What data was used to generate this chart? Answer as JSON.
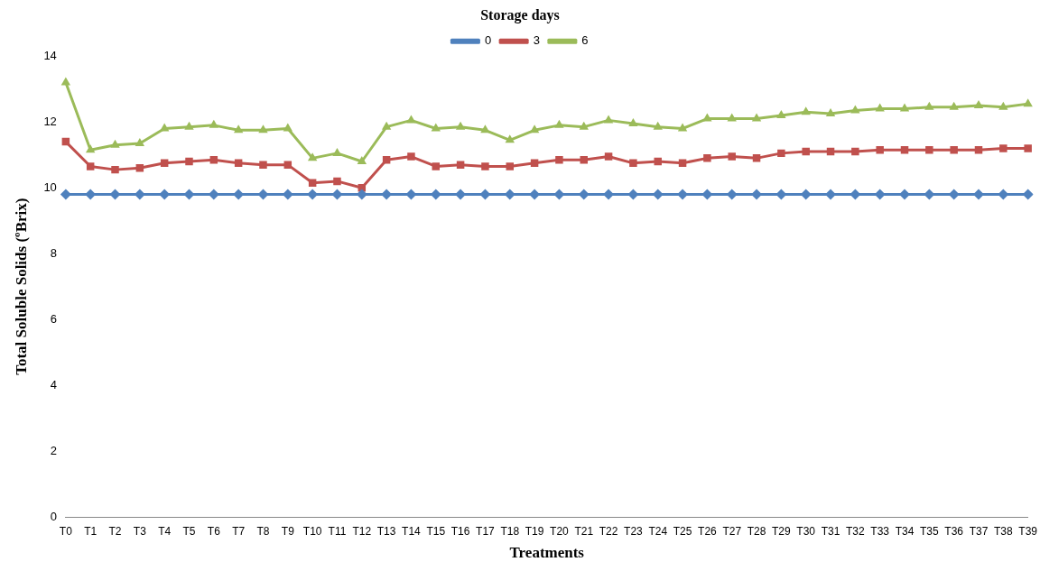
{
  "chart_data": {
    "type": "line",
    "legend_title": "Storage days",
    "xlabel": "Treatments",
    "ylabel": "Total Soluble Solids (ºBrix)",
    "categories": [
      "T0",
      "T1",
      "T2",
      "T3",
      "T4",
      "T5",
      "T6",
      "T7",
      "T8",
      "T9",
      "T10",
      "T11",
      "T12",
      "T13",
      "T14",
      "T15",
      "T16",
      "T17",
      "T18",
      "T19",
      "T20",
      "T21",
      "T22",
      "T23",
      "T24",
      "T25",
      "T26",
      "T27",
      "T28",
      "T29",
      "T30",
      "T31",
      "T32",
      "T33",
      "T34",
      "T35",
      "T36",
      "T37",
      "T38",
      "T39"
    ],
    "series": [
      {
        "name": "0",
        "color": "#4f81bd",
        "marker": "diamond",
        "values": [
          9.8,
          9.8,
          9.8,
          9.8,
          9.8,
          9.8,
          9.8,
          9.8,
          9.8,
          9.8,
          9.8,
          9.8,
          9.8,
          9.8,
          9.8,
          9.8,
          9.8,
          9.8,
          9.8,
          9.8,
          9.8,
          9.8,
          9.8,
          9.8,
          9.8,
          9.8,
          9.8,
          9.8,
          9.8,
          9.8,
          9.8,
          9.8,
          9.8,
          9.8,
          9.8,
          9.8,
          9.8,
          9.8,
          9.8,
          9.8
        ]
      },
      {
        "name": "3",
        "color": "#c0504d",
        "marker": "square",
        "values": [
          11.4,
          10.65,
          10.55,
          10.6,
          10.75,
          10.8,
          10.85,
          10.75,
          10.7,
          10.7,
          10.15,
          10.2,
          10.0,
          10.85,
          10.95,
          10.65,
          10.7,
          10.65,
          10.65,
          10.75,
          10.85,
          10.85,
          10.95,
          10.75,
          10.8,
          10.75,
          10.9,
          10.95,
          10.9,
          11.05,
          11.1,
          11.1,
          11.1,
          11.15,
          11.15,
          11.15,
          11.15,
          11.15,
          11.2,
          11.2
        ]
      },
      {
        "name": "6",
        "color": "#9bbb59",
        "marker": "triangle",
        "values": [
          13.2,
          11.15,
          11.3,
          11.35,
          11.8,
          11.85,
          11.9,
          11.75,
          11.75,
          11.8,
          10.9,
          11.05,
          10.8,
          11.85,
          12.05,
          11.8,
          11.85,
          11.75,
          11.45,
          11.75,
          11.9,
          11.85,
          12.05,
          11.95,
          11.85,
          11.8,
          12.1,
          12.1,
          12.1,
          12.2,
          12.3,
          12.25,
          12.35,
          12.4,
          12.4,
          12.45,
          12.45,
          12.5,
          12.45,
          12.55
        ]
      }
    ],
    "ylim": [
      0,
      14
    ],
    "yticks": [
      0,
      2,
      4,
      6,
      8,
      10,
      12,
      14
    ],
    "grid": false,
    "legend": "top"
  }
}
